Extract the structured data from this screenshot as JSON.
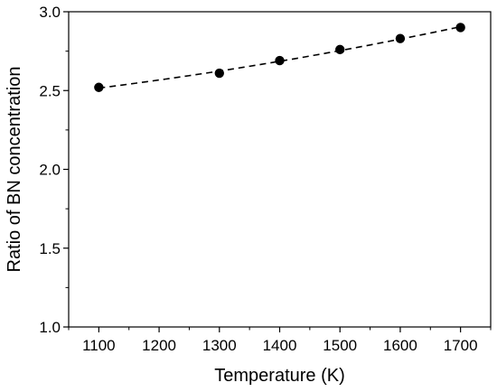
{
  "chart_data": {
    "type": "scatter",
    "xlabel": "Temperature (K)",
    "ylabel": "Ratio of BN concentration",
    "xlim": [
      1050,
      1750
    ],
    "ylim": [
      1.0,
      3.0
    ],
    "x_ticks": [
      1100,
      1200,
      1300,
      1400,
      1500,
      1600,
      1700
    ],
    "y_ticks": [
      1.0,
      1.5,
      2.0,
      2.5,
      3.0
    ],
    "y_tick_labels": [
      "1.0",
      "1.5",
      "2.0",
      "2.5",
      "3.0"
    ],
    "grid": false,
    "series": [
      {
        "x": [
          1100,
          1300,
          1400,
          1500,
          1600,
          1700
        ],
        "y": [
          2.52,
          2.61,
          2.69,
          2.76,
          2.83,
          2.9
        ],
        "marker": "filled-circle",
        "color": "#000000"
      }
    ],
    "fit_line": {
      "style": "dashed",
      "color": "#000000",
      "x": [
        1100,
        1700
      ]
    }
  }
}
